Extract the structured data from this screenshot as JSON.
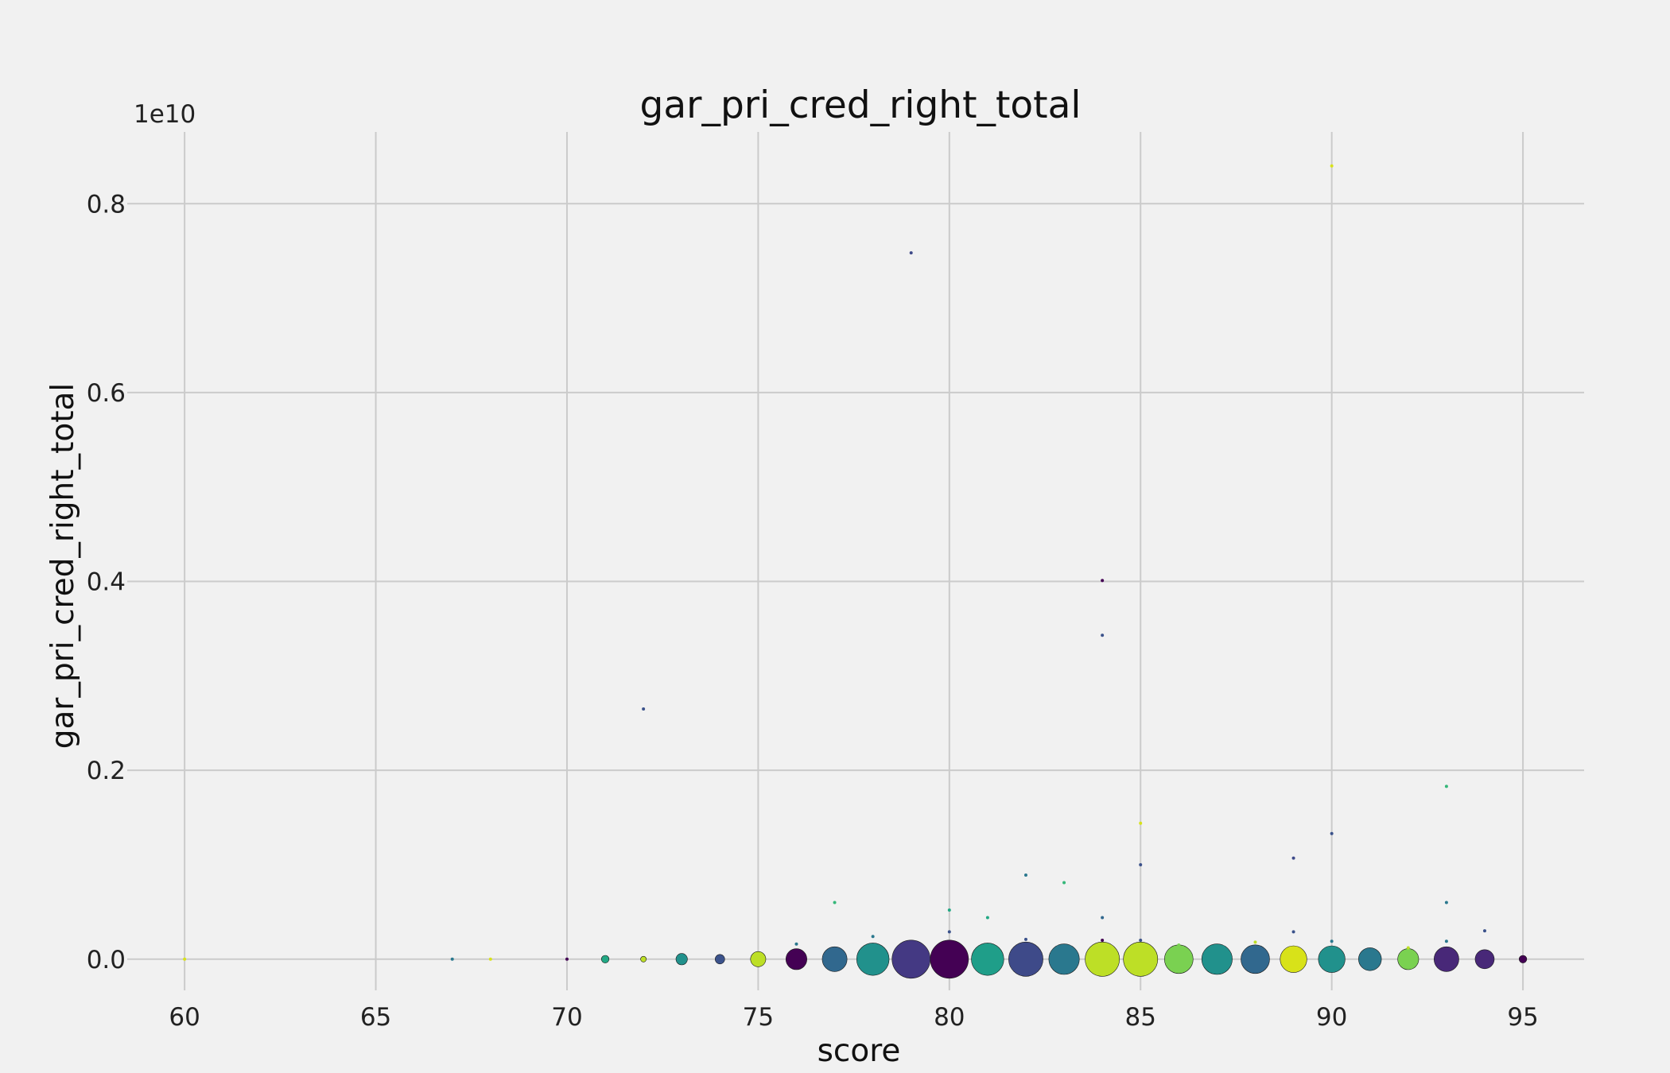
{
  "chart_data": {
    "type": "scatter",
    "title": "gar_pri_cred_right_total",
    "xlabel": "score",
    "ylabel": "gar_pri_cred_right_total",
    "y_offset_text": "1e10",
    "xlim": [
      58.5,
      96.6
    ],
    "ylim": [
      -0.033,
      0.876
    ],
    "x_ticks": [
      60,
      65,
      70,
      75,
      80,
      85,
      90,
      95
    ],
    "x_tick_labels": [
      "60",
      "65",
      "70",
      "75",
      "80",
      "85",
      "90",
      "95"
    ],
    "y_ticks": [
      0.0,
      0.2,
      0.4,
      0.6,
      0.8
    ],
    "y_tick_labels": [
      "0.0",
      "0.2",
      "0.4",
      "0.6",
      "0.8"
    ],
    "grid": true,
    "y_unit_note": "values in units of 1e10",
    "points": [
      {
        "x": 60,
        "y": 0.0,
        "size": 1,
        "color": "#d8e219"
      },
      {
        "x": 67,
        "y": 0.0,
        "size": 1,
        "color": "#2a788e"
      },
      {
        "x": 68,
        "y": 0.0,
        "size": 1,
        "color": "#d8e219"
      },
      {
        "x": 70,
        "y": 0.0,
        "size": 1,
        "color": "#440154"
      },
      {
        "x": 71,
        "y": 0.0,
        "size": 4,
        "color": "#22a884"
      },
      {
        "x": 72,
        "y": 0.0,
        "size": 3,
        "color": "#bddf26"
      },
      {
        "x": 72,
        "y": 0.265,
        "size": 1,
        "color": "#3b528b"
      },
      {
        "x": 73,
        "y": 0.0,
        "size": 6,
        "color": "#21918c"
      },
      {
        "x": 74,
        "y": 0.0,
        "size": 5,
        "color": "#3b528b"
      },
      {
        "x": 75,
        "y": 0.0,
        "size": 8,
        "color": "#bddf26"
      },
      {
        "x": 76,
        "y": 0.0,
        "size": 11,
        "color": "#440154"
      },
      {
        "x": 76,
        "y": 0.016,
        "size": 1,
        "color": "#2a788e"
      },
      {
        "x": 77,
        "y": 0.0,
        "size": 13,
        "color": "#31688e"
      },
      {
        "x": 77,
        "y": 0.06,
        "size": 1,
        "color": "#35b779"
      },
      {
        "x": 78,
        "y": 0.0,
        "size": 17,
        "color": "#21918c"
      },
      {
        "x": 78,
        "y": 0.024,
        "size": 1,
        "color": "#2a788e"
      },
      {
        "x": 79,
        "y": 0.0,
        "size": 20,
        "color": "#443983"
      },
      {
        "x": 79,
        "y": 0.748,
        "size": 1,
        "color": "#3e4a89"
      },
      {
        "x": 80,
        "y": 0.0,
        "size": 20,
        "color": "#440154"
      },
      {
        "x": 80,
        "y": 0.029,
        "size": 1,
        "color": "#3b528b"
      },
      {
        "x": 80,
        "y": 0.052,
        "size": 1,
        "color": "#22a884"
      },
      {
        "x": 81,
        "y": 0.0,
        "size": 17,
        "color": "#1f9e89"
      },
      {
        "x": 81,
        "y": 0.044,
        "size": 1,
        "color": "#22a884"
      },
      {
        "x": 82,
        "y": 0.0,
        "size": 18,
        "color": "#3e4a89"
      },
      {
        "x": 82,
        "y": 0.021,
        "size": 1,
        "color": "#3b528b"
      },
      {
        "x": 82,
        "y": 0.089,
        "size": 1,
        "color": "#2a788e"
      },
      {
        "x": 83,
        "y": 0.0,
        "size": 16,
        "color": "#2a788e"
      },
      {
        "x": 83,
        "y": 0.081,
        "size": 1,
        "color": "#35b779"
      },
      {
        "x": 84,
        "y": 0.0,
        "size": 18,
        "color": "#bddf26"
      },
      {
        "x": 84,
        "y": 0.02,
        "size": 1,
        "color": "#440154"
      },
      {
        "x": 84,
        "y": 0.044,
        "size": 1,
        "color": "#31688e"
      },
      {
        "x": 84,
        "y": 0.343,
        "size": 1,
        "color": "#3b528b"
      },
      {
        "x": 84,
        "y": 0.401,
        "size": 1,
        "color": "#440154"
      },
      {
        "x": 85,
        "y": 0.0,
        "size": 18,
        "color": "#bddf26"
      },
      {
        "x": 85,
        "y": 0.02,
        "size": 1,
        "color": "#3b528b"
      },
      {
        "x": 85,
        "y": 0.1,
        "size": 1,
        "color": "#3b528b"
      },
      {
        "x": 85,
        "y": 0.144,
        "size": 1,
        "color": "#d8e219"
      },
      {
        "x": 86,
        "y": 0.0,
        "size": 15,
        "color": "#7ad151"
      },
      {
        "x": 86,
        "y": 0.015,
        "size": 1,
        "color": "#7ad151"
      },
      {
        "x": 87,
        "y": 0.0,
        "size": 16,
        "color": "#21918c"
      },
      {
        "x": 88,
        "y": 0.0,
        "size": 15,
        "color": "#31688e"
      },
      {
        "x": 88,
        "y": 0.018,
        "size": 1,
        "color": "#bddf26"
      },
      {
        "x": 89,
        "y": 0.0,
        "size": 14,
        "color": "#d8e219"
      },
      {
        "x": 89,
        "y": 0.029,
        "size": 1,
        "color": "#3b528b"
      },
      {
        "x": 89,
        "y": 0.107,
        "size": 1,
        "color": "#3e4a89"
      },
      {
        "x": 90,
        "y": 0.0,
        "size": 14,
        "color": "#21918c"
      },
      {
        "x": 90,
        "y": 0.019,
        "size": 1,
        "color": "#2a788e"
      },
      {
        "x": 90,
        "y": 0.133,
        "size": 1,
        "color": "#3b528b"
      },
      {
        "x": 90,
        "y": 0.84,
        "size": 1,
        "color": "#d8e219"
      },
      {
        "x": 91,
        "y": 0.0,
        "size": 12,
        "color": "#2a788e"
      },
      {
        "x": 92,
        "y": 0.0,
        "size": 11,
        "color": "#7ad151"
      },
      {
        "x": 92,
        "y": 0.012,
        "size": 1,
        "color": "#bddf26"
      },
      {
        "x": 93,
        "y": 0.0,
        "size": 13,
        "color": "#482878"
      },
      {
        "x": 93,
        "y": 0.019,
        "size": 1,
        "color": "#2a788e"
      },
      {
        "x": 93,
        "y": 0.06,
        "size": 1,
        "color": "#2a788e"
      },
      {
        "x": 93,
        "y": 0.183,
        "size": 1,
        "color": "#35b779"
      },
      {
        "x": 94,
        "y": 0.0,
        "size": 10,
        "color": "#482878"
      },
      {
        "x": 94,
        "y": 0.03,
        "size": 1,
        "color": "#3b528b"
      },
      {
        "x": 95,
        "y": 0.0,
        "size": 4,
        "color": "#440154"
      }
    ]
  }
}
